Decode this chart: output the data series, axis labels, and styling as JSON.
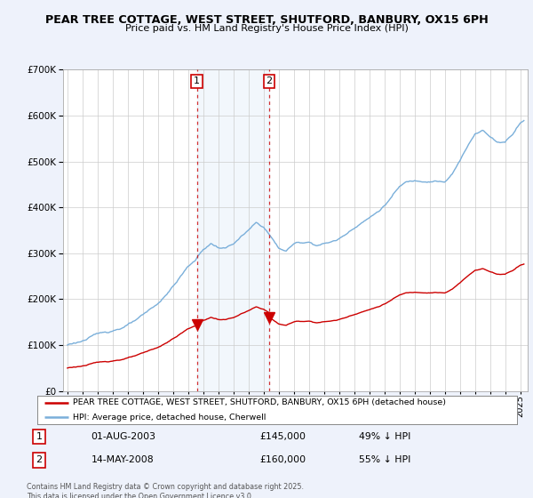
{
  "title": "PEAR TREE COTTAGE, WEST STREET, SHUTFORD, BANBURY, OX15 6PH",
  "subtitle": "Price paid vs. HM Land Registry's House Price Index (HPI)",
  "legend_label_red": "PEAR TREE COTTAGE, WEST STREET, SHUTFORD, BANBURY, OX15 6PH (detached house)",
  "legend_label_blue": "HPI: Average price, detached house, Cherwell",
  "sale1_date": "01-AUG-2003",
  "sale1_price": "£145,000",
  "sale1_hpi": "49% ↓ HPI",
  "sale2_date": "14-MAY-2008",
  "sale2_price": "£160,000",
  "sale2_hpi": "55% ↓ HPI",
  "footer": "Contains HM Land Registry data © Crown copyright and database right 2025.\nThis data is licensed under the Open Government Licence v3.0.",
  "ylim": [
    0,
    700000
  ],
  "xlim_start": 1994.7,
  "xlim_end": 2025.5,
  "vline1_x": 2003.58,
  "vline2_x": 2008.37,
  "bg_color": "#eef2fb",
  "plot_bg": "#ffffff",
  "red_color": "#cc0000",
  "blue_color": "#7aafda",
  "sale1_year": 2003.58,
  "sale1_val": 145000,
  "sale2_year": 2008.37,
  "sale2_val": 160000
}
